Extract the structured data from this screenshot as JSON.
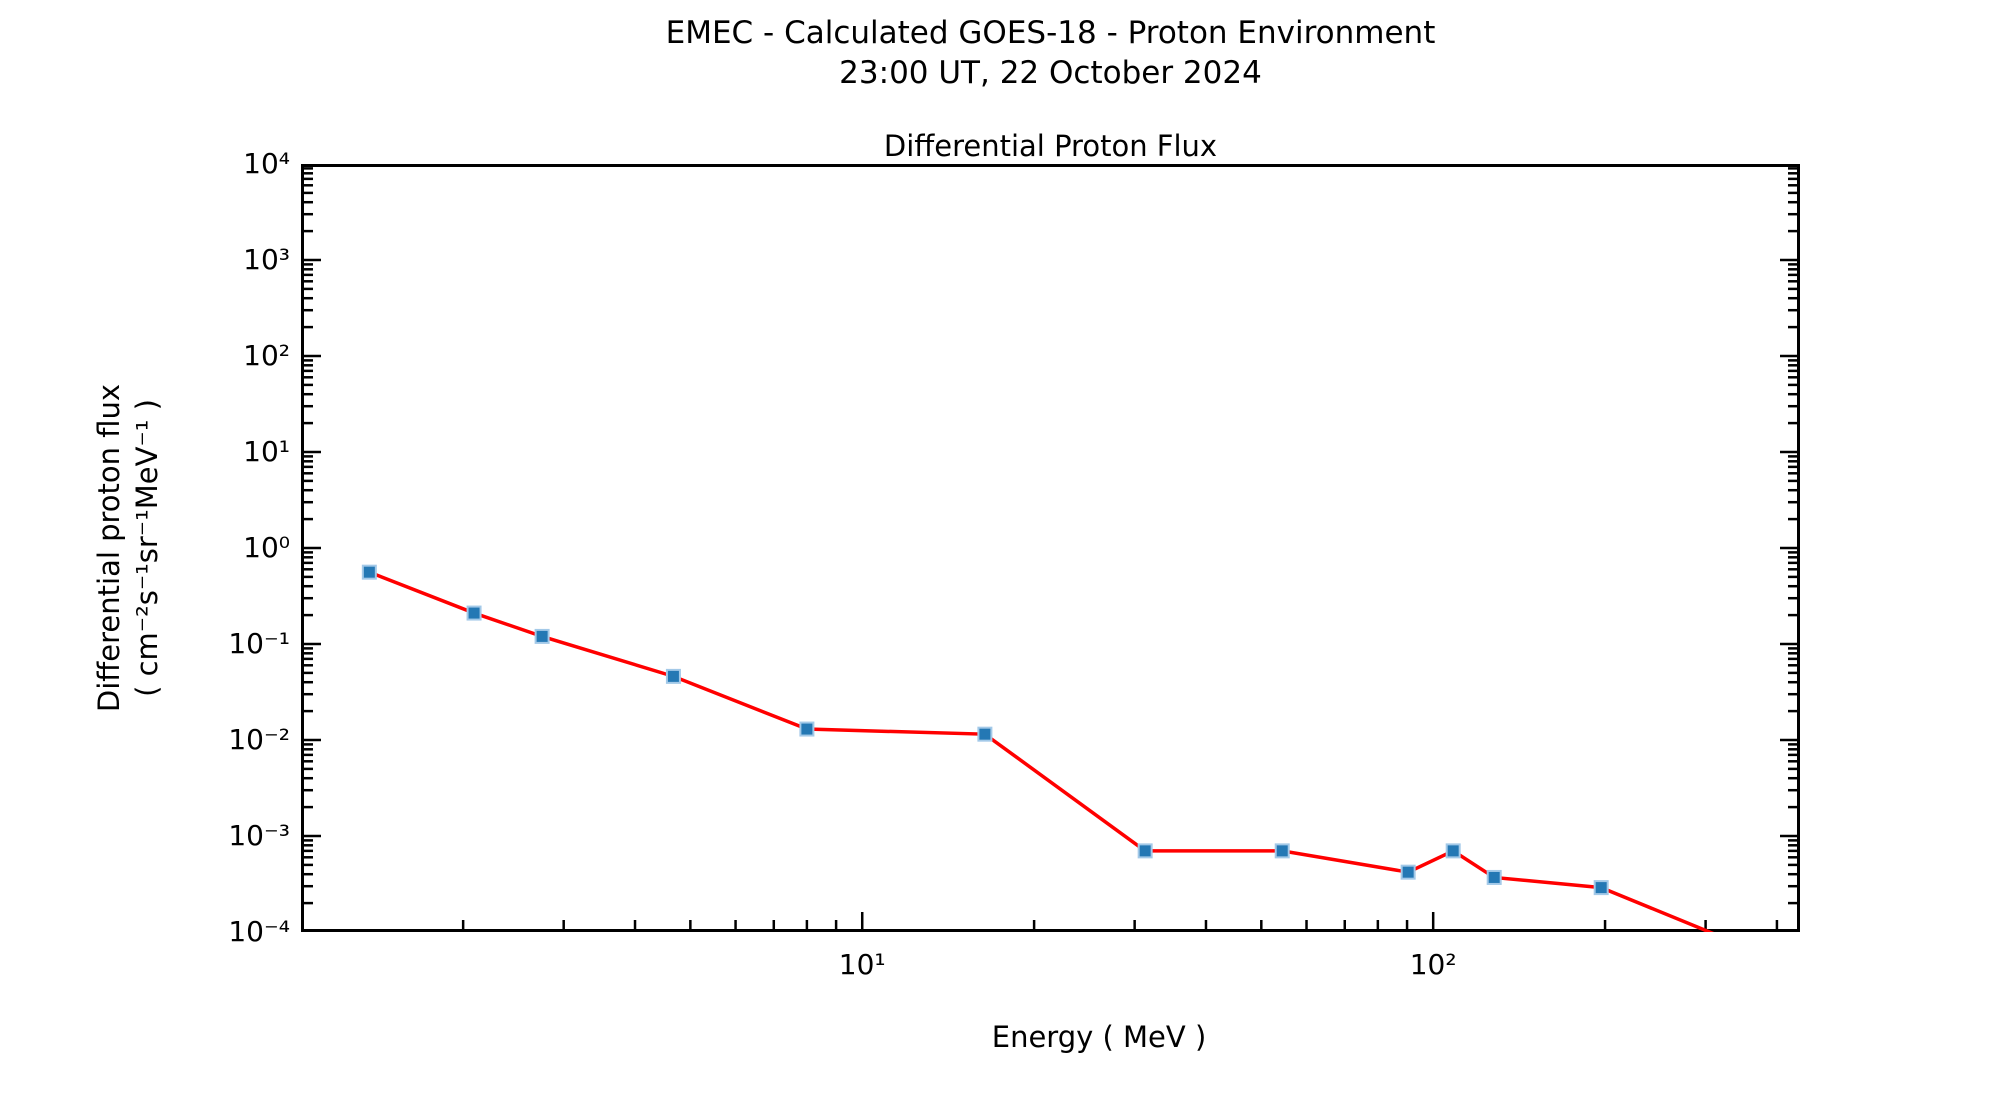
{
  "header": {
    "title_line1": "EMEC - Calculated GOES-18 - Proton Environment",
    "title_line2": "23:00 UT, 22 October 2024"
  },
  "axes": {
    "xlabel": "Energy ( MeV )",
    "ylabel_line1": "Differential proton flux",
    "ylabel_line2": "( cm⁻²s⁻¹sr⁻¹MeV⁻¹ )"
  },
  "chart_data": {
    "type": "line",
    "title": "Differential Proton Flux",
    "xlabel": "Energy ( MeV )",
    "ylabel": "Differential proton flux ( cm⁻²s⁻¹sr⁻¹MeV⁻¹ )",
    "xscale": "log",
    "yscale": "log",
    "xlim": [
      1.04,
      439
    ],
    "ylim": [
      0.0001,
      10000.0
    ],
    "grid": false,
    "legend": false,
    "log_minor_ticks": true,
    "x_ticks_major": [
      {
        "value": 10,
        "label": "10¹"
      },
      {
        "value": 100,
        "label": "10²"
      }
    ],
    "y_ticks_major": [
      {
        "value": 10000.0,
        "label": "10⁴"
      },
      {
        "value": 1000.0,
        "label": "10³"
      },
      {
        "value": 100.0,
        "label": "10²"
      },
      {
        "value": 10.0,
        "label": "10¹"
      },
      {
        "value": 1.0,
        "label": "10⁰"
      },
      {
        "value": 0.1,
        "label": "10⁻¹"
      },
      {
        "value": 0.01,
        "label": "10⁻²"
      },
      {
        "value": 0.001,
        "label": "10⁻³"
      },
      {
        "value": 0.0001,
        "label": "10⁻⁴"
      }
    ],
    "series": [
      {
        "name": "differential-proton-flux",
        "x": [
          1.37,
          2.09,
          2.75,
          4.67,
          8.0,
          16.4,
          31.3,
          54.4,
          90.4,
          108.4,
          127.9,
          196.9,
          334
        ],
        "y": [
          0.56,
          0.21,
          0.12,
          0.046,
          0.013,
          0.0115,
          0.0007,
          0.0007,
          0.00042,
          0.0007,
          0.00037,
          0.00029,
          8e-05
        ],
        "note_last_point": "final point lies below the 1e-4 axis limit; only the clipped line segment is visible"
      }
    ],
    "style": {
      "line_color": "#ff0000",
      "line_width": 3.5,
      "marker_shape": "square",
      "marker_fill": "#2478b4",
      "marker_edge": "#a3c9e8",
      "marker_size": 13,
      "axis_color": "#000000",
      "background": "#ffffff"
    }
  }
}
